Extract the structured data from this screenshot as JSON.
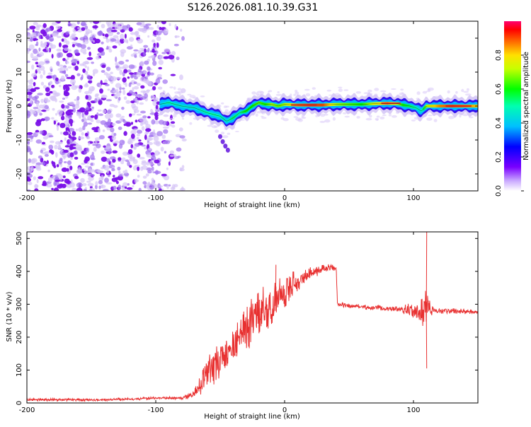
{
  "title": "S126.2026.081.10.39.G31",
  "colors": {
    "snr_line": "#e83030",
    "axis": "#000000",
    "ridge": "#e8231f"
  },
  "chart_data": [
    {
      "type": "heatmap",
      "title": "S126.2026.081.10.39.G31",
      "xlabel": "Height of straight line (km)",
      "ylabel": "Frequency (Hz)",
      "xlim": [
        -200,
        150
      ],
      "ylim": [
        -25,
        25
      ],
      "xticks": [
        -200,
        -100,
        0,
        100
      ],
      "yticks": [
        -20,
        -10,
        0,
        10,
        20
      ],
      "colorbar": {
        "label": "Normalized spectral amplitude",
        "range": [
          0,
          1
        ],
        "ticks": [
          "0.0",
          "0.2",
          "0.4",
          "0.6",
          "0.8"
        ],
        "tick_values": [
          0.0,
          0.2,
          0.4,
          0.6,
          0.8
        ]
      },
      "noise_region_km": [
        -200,
        -85
      ],
      "ridge": {
        "x": [
          -97,
          -90,
          -80,
          -70,
          -60,
          -50,
          -45,
          -40,
          -35,
          -30,
          -25,
          -20,
          -15,
          -10,
          -5,
          0,
          10,
          20,
          30,
          40,
          50,
          60,
          70,
          80,
          88,
          92,
          97,
          102,
          106,
          110,
          120,
          130,
          140,
          150
        ],
        "y": [
          0.5,
          1.0,
          0.0,
          -0.5,
          -2.0,
          -3.0,
          -4.5,
          -3.5,
          -2.0,
          -1.5,
          0.0,
          1.0,
          0.5,
          0.5,
          0.0,
          0.5,
          0.3,
          0.3,
          0.3,
          0.5,
          0.5,
          0.5,
          0.7,
          0.8,
          0.7,
          0.3,
          0.0,
          -0.5,
          -1.5,
          0.0,
          0.0,
          0.0,
          0.0,
          0.0
        ],
        "amplitude": [
          0.4,
          0.5,
          0.45,
          0.45,
          0.5,
          0.5,
          0.45,
          0.55,
          0.5,
          0.6,
          0.6,
          0.65,
          0.6,
          0.7,
          0.65,
          0.7,
          0.85,
          0.9,
          0.9,
          0.7,
          0.65,
          0.6,
          0.75,
          0.85,
          0.7,
          0.6,
          0.55,
          0.5,
          0.45,
          0.7,
          0.85,
          0.9,
          0.85,
          0.8
        ]
      },
      "side_lobe": {
        "x": [
          -50,
          -48,
          -46,
          -44
        ],
        "y": [
          -9,
          -10.5,
          -11.8,
          -13
        ]
      }
    },
    {
      "type": "line",
      "xlabel": "Height of straight line (km)",
      "ylabel": "SNR (10 * v/v)",
      "xlim": [
        -200,
        150
      ],
      "ylim": [
        0,
        520
      ],
      "xticks": [
        -200,
        -100,
        0,
        100
      ],
      "yticks": [
        0,
        100,
        200,
        300,
        400,
        500
      ],
      "series": [
        {
          "name": "SNR",
          "x": [
            -200,
            -180,
            -160,
            -140,
            -120,
            -100,
            -90,
            -80,
            -75,
            -70,
            -65,
            -60,
            -55,
            -50,
            -45,
            -40,
            -35,
            -30,
            -25,
            -20,
            -15,
            -10,
            -5,
            0,
            5,
            10,
            15,
            20,
            25,
            30,
            35,
            40,
            41,
            50,
            60,
            70,
            80,
            90,
            95,
            100,
            105,
            108,
            110,
            112,
            115,
            120,
            130,
            140,
            150
          ],
          "y": [
            10,
            10,
            10,
            10,
            12,
            15,
            15,
            15,
            20,
            30,
            55,
            90,
            110,
            130,
            160,
            170,
            200,
            220,
            250,
            270,
            290,
            300,
            330,
            340,
            360,
            370,
            380,
            395,
            400,
            408,
            410,
            412,
            300,
            295,
            292,
            290,
            288,
            285,
            282,
            280,
            275,
            272,
            280,
            285,
            282,
            280,
            280,
            278,
            275
          ],
          "spread": [
            4,
            4,
            4,
            4,
            4,
            4,
            4,
            4,
            8,
            12,
            30,
            50,
            55,
            55,
            55,
            60,
            65,
            70,
            75,
            75,
            70,
            65,
            60,
            55,
            40,
            30,
            25,
            18,
            15,
            12,
            12,
            10,
            8,
            8,
            8,
            8,
            8,
            9,
            20,
            25,
            35,
            60,
            70,
            30,
            12,
            10,
            8,
            8,
            8
          ]
        }
      ],
      "spikes": [
        {
          "x": -7,
          "y": 420
        },
        {
          "x": 110,
          "y": 520
        },
        {
          "x": 110,
          "y": 105
        }
      ]
    }
  ]
}
